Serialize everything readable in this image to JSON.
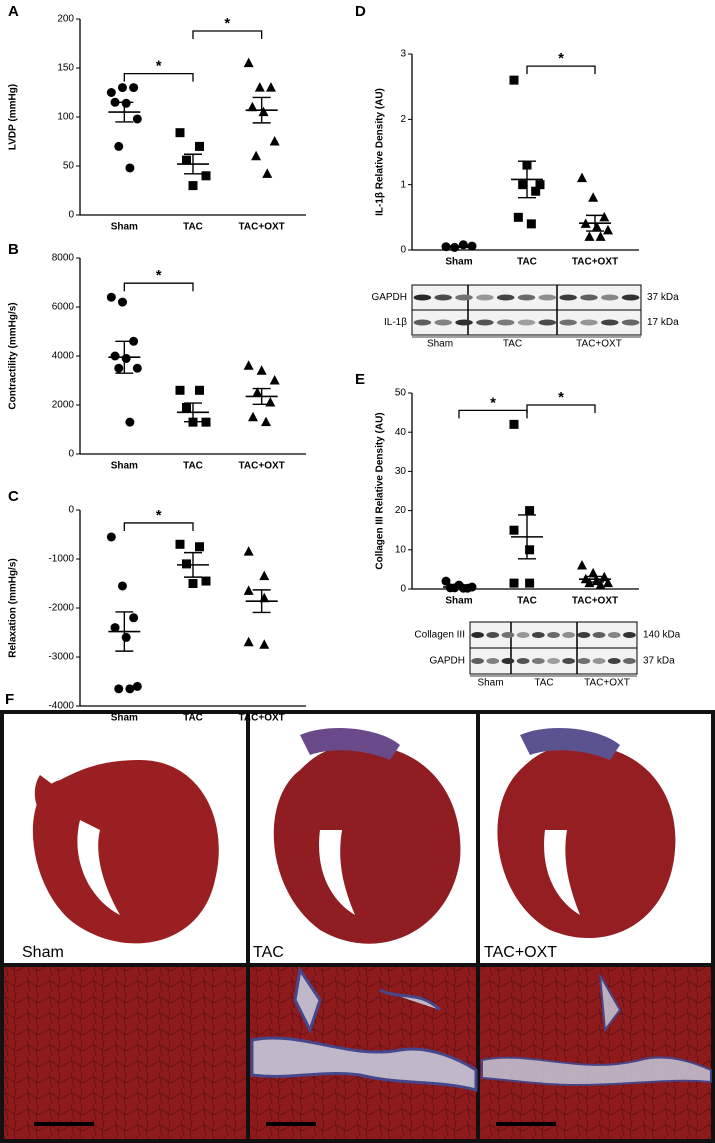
{
  "chart_data": [
    {
      "type": "dot",
      "panel": "A",
      "y_label": "LVDP (mmHg)",
      "categories": [
        "Sham",
        "TAC",
        "TAC+OXT"
      ],
      "markers": [
        "circle",
        "square",
        "triangle"
      ],
      "values": [
        [
          125,
          130,
          130,
          115,
          114,
          98,
          70,
          48
        ],
        [
          84,
          70,
          56,
          40,
          30
        ],
        [
          155,
          130,
          130,
          110,
          105,
          75,
          60,
          42
        ]
      ],
      "mean": [
        105,
        52,
        107
      ],
      "sem": [
        10,
        10,
        13
      ],
      "ylim": [
        0,
        200
      ],
      "yticks": [
        0,
        50,
        100,
        150,
        200
      ],
      "significance": [
        {
          "between": [
            0,
            1
          ],
          "label": "*"
        },
        {
          "between": [
            1,
            2
          ],
          "label": "*"
        }
      ]
    },
    {
      "type": "dot",
      "panel": "B",
      "y_label": "Contractility (mmHg/s)",
      "categories": [
        "Sham",
        "TAC",
        "TAC+OXT"
      ],
      "markers": [
        "circle",
        "square",
        "triangle"
      ],
      "values": [
        [
          6400,
          6200,
          4600,
          4000,
          3900,
          3500,
          3500,
          1300
        ],
        [
          2600,
          2600,
          1900,
          1300,
          1300
        ],
        [
          3600,
          3400,
          3000,
          2500,
          2100,
          1500,
          1300
        ]
      ],
      "mean": [
        3950,
        1700,
        2350
      ],
      "sem": [
        650,
        380,
        320
      ],
      "ylim": [
        0,
        8000
      ],
      "yticks": [
        0,
        2000,
        4000,
        6000,
        8000
      ],
      "significance": [
        {
          "between": [
            0,
            1
          ],
          "label": "*"
        }
      ]
    },
    {
      "type": "dot",
      "panel": "C",
      "y_label": "Relaxation (mmHg/s)",
      "categories": [
        "Sham",
        "TAC",
        "TAC+OXT"
      ],
      "markers": [
        "circle",
        "square",
        "triangle"
      ],
      "values": [
        [
          -550,
          -1550,
          -2200,
          -2400,
          -2600,
          -3600,
          -3650,
          -3650
        ],
        [
          -700,
          -750,
          -1100,
          -1450,
          -1500
        ],
        [
          -850,
          -1350,
          -1650,
          -1800,
          -2700,
          -2750
        ]
      ],
      "mean": [
        -2480,
        -1120,
        -1860
      ],
      "sem": [
        400,
        250,
        230
      ],
      "ylim": [
        -4000,
        0
      ],
      "yticks": [
        -4000,
        -3000,
        -2000,
        -1000,
        0
      ],
      "significance": [
        {
          "between": [
            0,
            1
          ],
          "label": "*"
        }
      ]
    },
    {
      "type": "dot",
      "panel": "D",
      "y_label": "IL-1β Relative Density (AU)",
      "categories": [
        "Sham",
        "TAC",
        "TAC+OXT"
      ],
      "markers": [
        "circle",
        "square",
        "triangle"
      ],
      "values": [
        [
          0.05,
          0.06,
          0.08,
          0.04
        ],
        [
          2.6,
          1.3,
          1.0,
          1.0,
          0.9,
          0.5,
          0.4
        ],
        [
          1.1,
          0.8,
          0.5,
          0.4,
          0.35,
          0.3,
          0.2,
          0.2
        ]
      ],
      "mean": [
        0.05,
        1.08,
        0.41
      ],
      "sem": [
        0.01,
        0.28,
        0.12
      ],
      "ylim": [
        0,
        3
      ],
      "yticks": [
        0,
        1,
        2,
        3
      ],
      "significance": [
        {
          "between": [
            1,
            2
          ],
          "label": "*"
        }
      ],
      "blot": {
        "rows": [
          {
            "label": "GAPDH",
            "size": "37 kDa"
          },
          {
            "label": "IL-1β",
            "size": "17 kDa"
          }
        ],
        "groups": [
          "Sham",
          "TAC",
          "TAC+OXT"
        ]
      }
    },
    {
      "type": "dot",
      "panel": "E",
      "y_label": "Collagen III Relative Density (AU)",
      "categories": [
        "Sham",
        "TAC",
        "TAC+OXT"
      ],
      "markers": [
        "circle",
        "square",
        "triangle"
      ],
      "values": [
        [
          2,
          1,
          0.5,
          0.3,
          0.2,
          0.3,
          0.2
        ],
        [
          42,
          20,
          15,
          10,
          1.5,
          1.5
        ],
        [
          6,
          4,
          3,
          2.5,
          2,
          1.5,
          1.5,
          1
        ]
      ],
      "mean": [
        0.5,
        13.3,
        2.5
      ],
      "sem": [
        0.3,
        5.6,
        0.7
      ],
      "ylim": [
        0,
        50
      ],
      "yticks": [
        0,
        10,
        20,
        30,
        40,
        50
      ],
      "significance": [
        {
          "between": [
            0,
            1
          ],
          "label": "*"
        },
        {
          "between": [
            1,
            2
          ],
          "label": "*"
        }
      ],
      "blot": {
        "rows": [
          {
            "label": "Collagen III",
            "size": "140 kDa"
          },
          {
            "label": "GAPDH",
            "size": "37 kDa"
          }
        ],
        "groups": [
          "Sham",
          "TAC",
          "TAC+OXT"
        ]
      }
    }
  ],
  "histology": {
    "panel": "F",
    "labels": [
      "Sham",
      "TAC",
      "TAC+OXT"
    ]
  }
}
